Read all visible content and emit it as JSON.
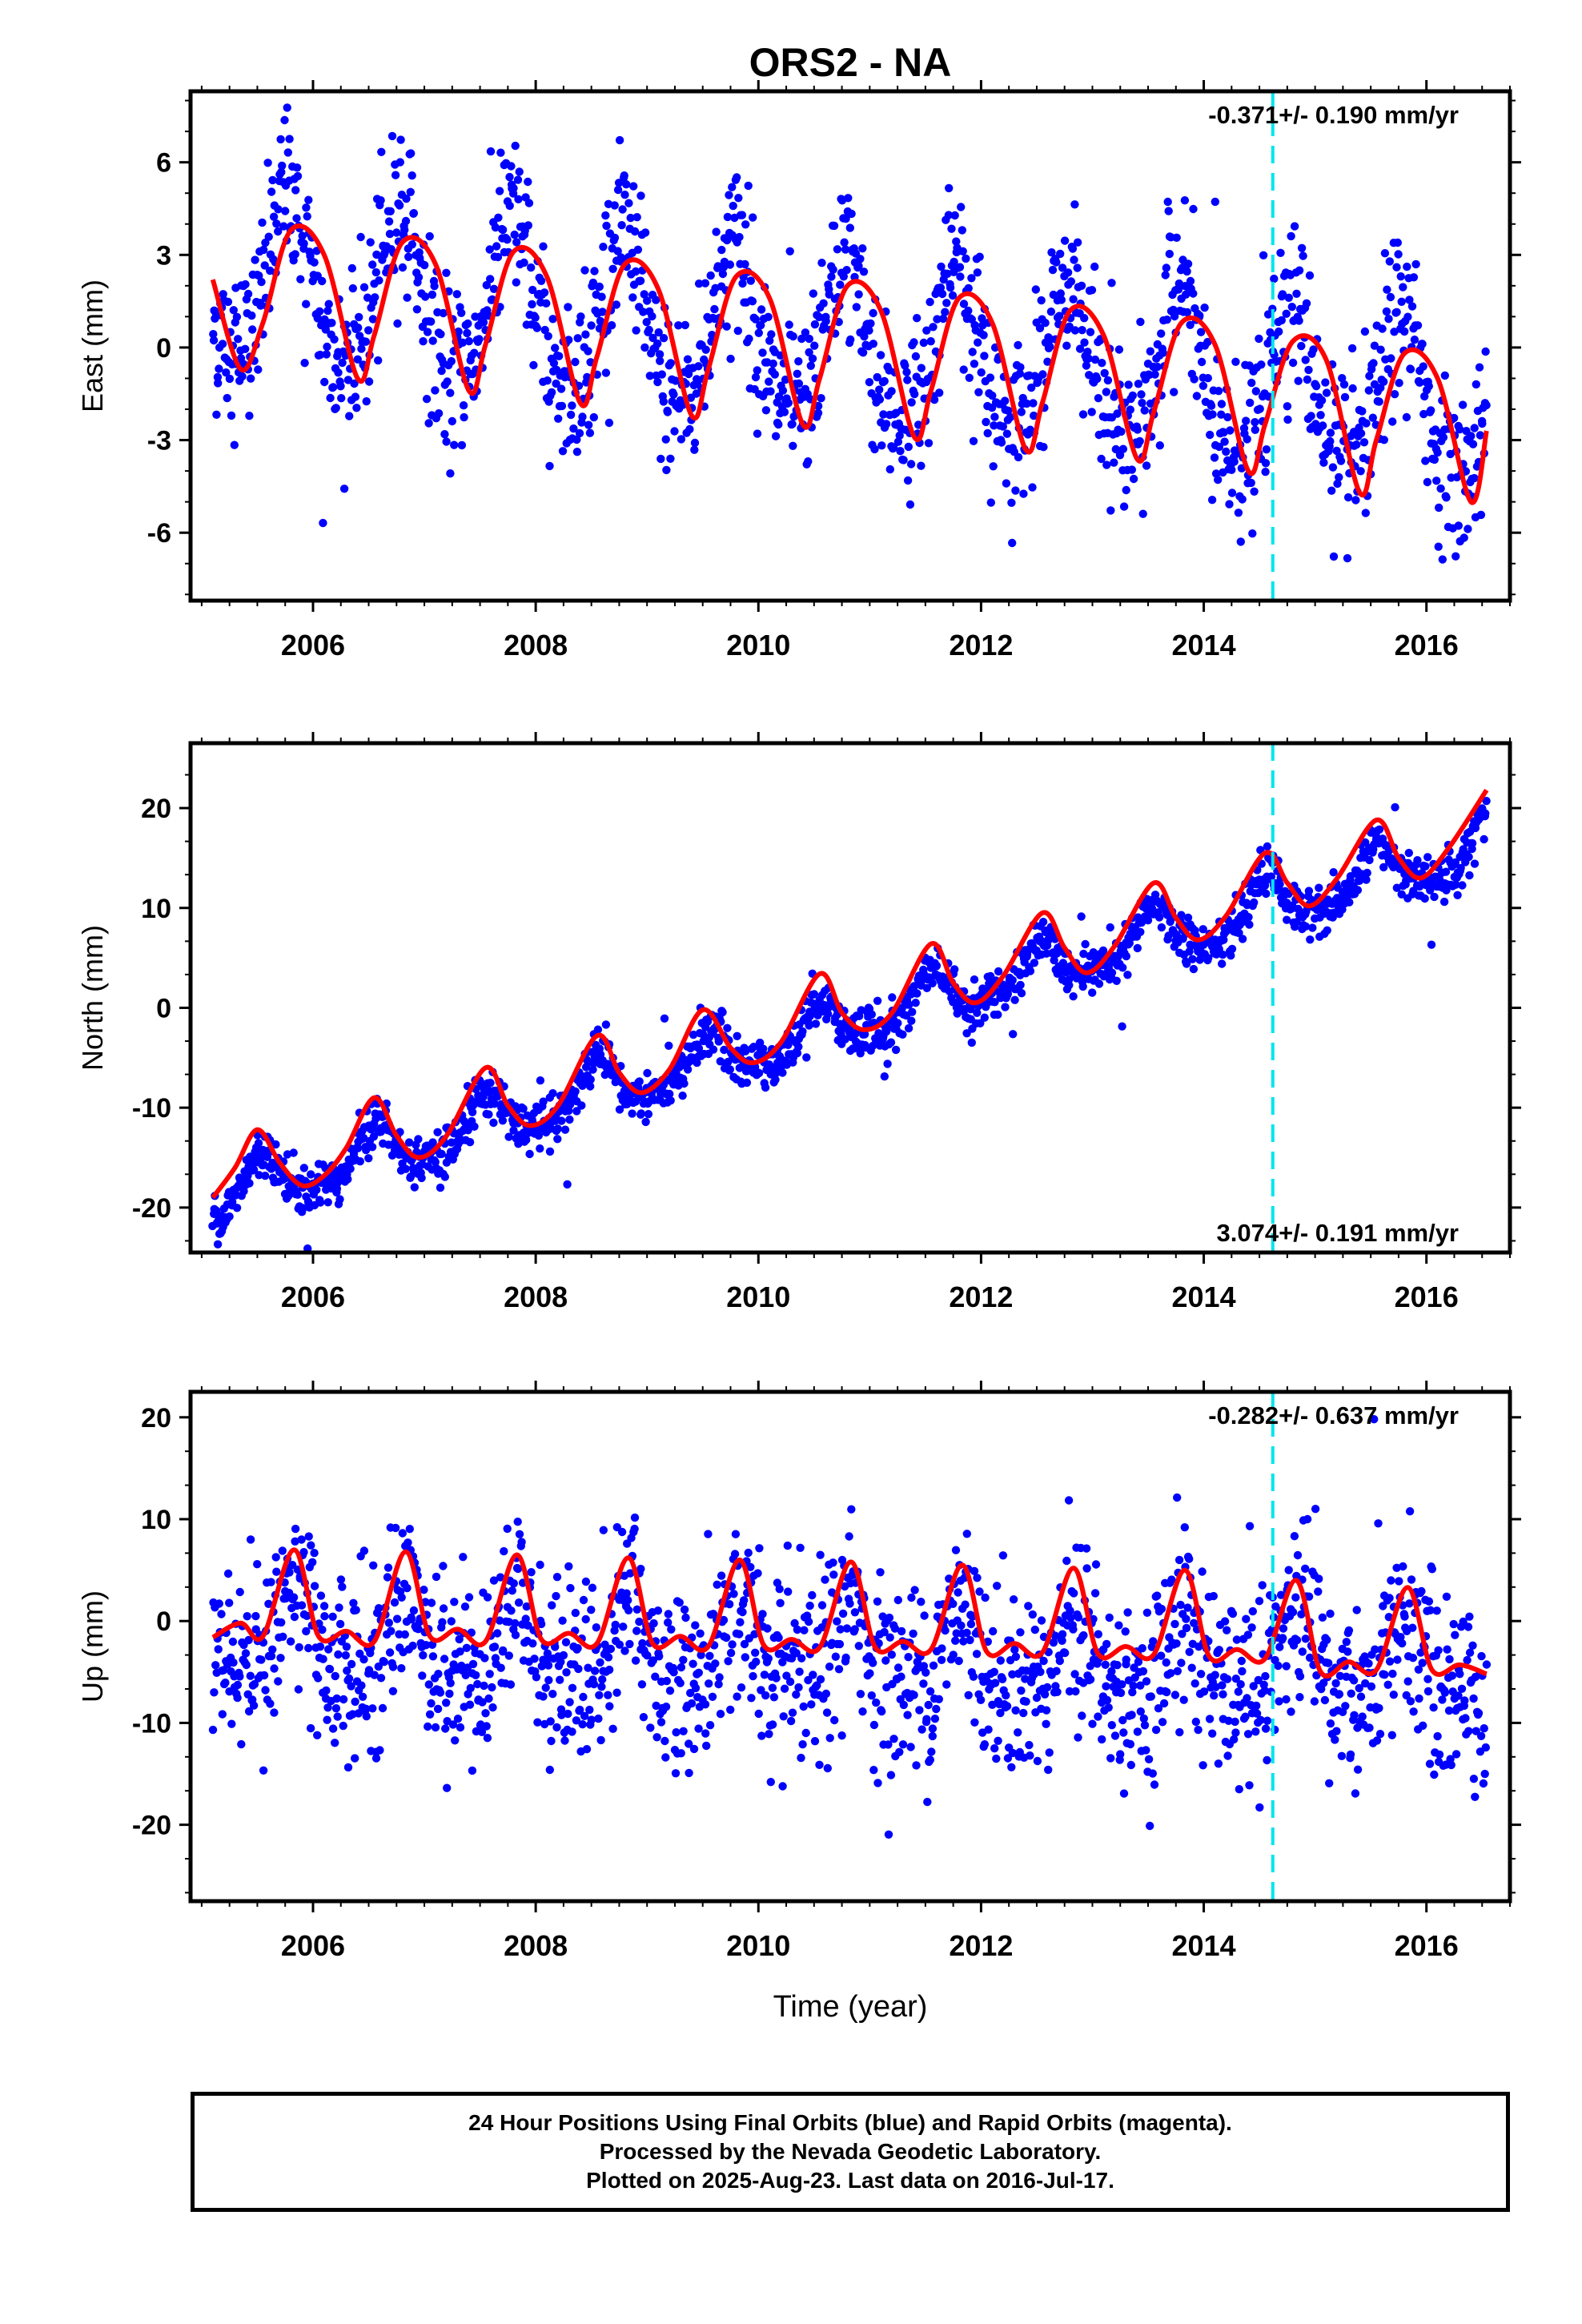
{
  "title": "ORS2 - NA",
  "xlabel": "Time (year)",
  "x_ticks": [
    "2006",
    "2008",
    "2010",
    "2012",
    "2014",
    "2016"
  ],
  "colors": {
    "final_orbits": "#0000ff",
    "fit": "#ff0000",
    "marker": "#00e5ee"
  },
  "caption": [
    "24 Hour Positions Using Final Orbits (blue) and Rapid Orbits (magenta).",
    "Processed by the Nevada Geodetic Laboratory.",
    "Plotted on 2025-Aug-23. Last data on 2016-Jul-17."
  ],
  "chart_data": [
    {
      "type": "scatter",
      "ylabel": "East (mm)",
      "xlim": [
        2004.9,
        2016.75
      ],
      "ylim": [
        -8.2,
        8.3
      ],
      "y_ticks": [
        -6,
        -3,
        0,
        3,
        6
      ],
      "y_tick_labels": [
        "-6",
        "-3",
        "0",
        "3",
        "6"
      ],
      "rate_label": "-0.371+/- 0.190 mm/yr",
      "rate_position": "top-right",
      "marker_year": 2014.62,
      "data_start": 2005.1,
      "data_end": 2016.54,
      "series": [
        {
          "name": "Final Orbits",
          "kind": "daily positions",
          "model": {
            "offset": 2.2,
            "trend": -0.371,
            "annual_amplitude": 2.6,
            "annual_peak": 2005.78,
            "semiannual_amplitude": 0.4,
            "scatter": 1.3
          }
        },
        {
          "name": "fit",
          "kind": "line",
          "x": [
            2005.1,
            2005.35,
            2005.55,
            2005.8,
            2006.1,
            2006.4,
            2006.55,
            2006.8,
            2007.1,
            2007.4,
            2007.55,
            2007.8,
            2008.1,
            2008.4,
            2008.55,
            2008.8,
            2009.1,
            2009.4,
            2009.55,
            2009.8,
            2010.1,
            2010.4,
            2010.55,
            2010.8,
            2011.1,
            2011.4,
            2011.55,
            2011.8,
            2012.1,
            2012.4,
            2012.55,
            2012.8,
            2013.1,
            2013.4,
            2013.55,
            2013.8,
            2014.1,
            2014.4,
            2014.55,
            2014.8,
            2015.1,
            2015.4,
            2015.55,
            2015.8,
            2016.1,
            2016.4,
            2016.54
          ],
          "y": [
            2.2,
            -0.7,
            0.8,
            3.8,
            3.0,
            -1.0,
            0.4,
            3.4,
            2.7,
            -1.4,
            0.1,
            3.1,
            2.3,
            -1.8,
            -0.3,
            2.7,
            1.9,
            -2.2,
            -0.7,
            2.3,
            1.6,
            -2.5,
            -1.0,
            2.0,
            1.2,
            -2.9,
            -1.4,
            1.6,
            0.8,
            -3.3,
            -1.8,
            1.2,
            0.4,
            -3.6,
            -2.1,
            0.8,
            0.1,
            -4.0,
            -2.5,
            0.2,
            -0.4,
            -4.7,
            -3.0,
            -0.2,
            -1.0,
            -5.0,
            -2.7
          ]
        }
      ]
    },
    {
      "type": "scatter",
      "ylabel": "North (mm)",
      "xlim": [
        2004.9,
        2016.75
      ],
      "ylim": [
        -24.5,
        26.5
      ],
      "y_ticks": [
        -20,
        -10,
        0,
        10,
        20
      ],
      "y_tick_labels": [
        "-20",
        "-10",
        "0",
        "10",
        "20"
      ],
      "rate_label": "3.074+/- 0.191 mm/yr",
      "rate_position": "bottom-right",
      "marker_year": 2014.62,
      "data_start": 2005.1,
      "data_end": 2016.54,
      "series": [
        {
          "name": "Final Orbits",
          "kind": "daily positions",
          "model": {
            "offset": -19.0,
            "trend": 3.074,
            "annual_amplitude": 2.4,
            "annual_peak": 2005.55,
            "semiannual_amplitude": 0.8,
            "scatter": 1.2
          }
        },
        {
          "name": "fit",
          "kind": "line",
          "x": [
            2005.1,
            2005.3,
            2005.5,
            2005.7,
            2005.9,
            2006.1,
            2006.3,
            2006.55,
            2006.75,
            2006.95,
            2007.2,
            2007.55,
            2007.75,
            2007.95,
            2008.2,
            2008.55,
            2008.75,
            2008.95,
            2009.2,
            2009.5,
            2009.75,
            2009.95,
            2010.2,
            2010.55,
            2010.75,
            2010.95,
            2011.2,
            2011.55,
            2011.75,
            2011.95,
            2012.2,
            2012.55,
            2012.75,
            2012.95,
            2013.2,
            2013.55,
            2013.75,
            2013.95,
            2014.2,
            2014.55,
            2014.75,
            2014.95,
            2015.2,
            2015.55,
            2015.75,
            2015.95,
            2016.2,
            2016.54
          ],
          "y": [
            -19.0,
            -16.0,
            -12.2,
            -15.5,
            -17.8,
            -16.8,
            -14.0,
            -9.0,
            -12.8,
            -15.0,
            -12.8,
            -6.0,
            -9.8,
            -11.8,
            -9.8,
            -2.8,
            -6.5,
            -8.5,
            -6.2,
            -0.2,
            -4.0,
            -5.5,
            -3.5,
            3.4,
            -0.5,
            -2.2,
            -0.5,
            6.4,
            2.5,
            0.5,
            3.2,
            9.5,
            6.0,
            3.5,
            6.2,
            12.5,
            9.0,
            6.8,
            9.2,
            15.5,
            12.5,
            10.2,
            13.0,
            18.8,
            15.0,
            13.0,
            16.0,
            21.8
          ]
        }
      ]
    },
    {
      "type": "scatter",
      "ylabel": "Up (mm)",
      "xlim": [
        2004.9,
        2016.75
      ],
      "ylim": [
        -27.5,
        22.5
      ],
      "y_ticks": [
        -20,
        -10,
        0,
        10,
        20
      ],
      "y_tick_labels": [
        "-20",
        "-10",
        "0",
        "10",
        "20"
      ],
      "rate_label": "-0.282+/- 0.637 mm/yr",
      "rate_position": "top-right",
      "marker_year": 2014.62,
      "data_start": 2005.1,
      "data_end": 2016.54,
      "series": [
        {
          "name": "Final Orbits",
          "kind": "daily positions",
          "model": {
            "offset": -1.8,
            "trend": -0.282,
            "annual_amplitude": 3.5,
            "annual_peak": 2005.83,
            "semiannual_amplitude": 1.5,
            "scatter": 4.5
          }
        },
        {
          "name": "fit",
          "kind": "line",
          "x": [
            2005.1,
            2005.35,
            2005.55,
            2005.83,
            2006.05,
            2006.3,
            2006.55,
            2006.83,
            2007.05,
            2007.3,
            2007.55,
            2007.83,
            2008.05,
            2008.3,
            2008.55,
            2008.83,
            2009.05,
            2009.3,
            2009.55,
            2009.83,
            2010.05,
            2010.3,
            2010.55,
            2010.83,
            2011.05,
            2011.3,
            2011.55,
            2011.83,
            2012.05,
            2012.3,
            2012.55,
            2012.83,
            2013.05,
            2013.3,
            2013.55,
            2013.83,
            2014.05,
            2014.3,
            2014.55,
            2014.83,
            2015.05,
            2015.3,
            2015.55,
            2015.83,
            2016.05,
            2016.3,
            2016.54
          ],
          "y": [
            -1.6,
            -0.2,
            -1.5,
            7.0,
            -1.5,
            -1.0,
            -2.0,
            6.8,
            -1.5,
            -0.8,
            -2.0,
            6.5,
            -1.8,
            -1.2,
            -2.2,
            6.2,
            -2.2,
            -1.5,
            -2.5,
            6.0,
            -2.4,
            -1.8,
            -2.6,
            5.8,
            -2.6,
            -2.0,
            -2.8,
            5.5,
            -3.0,
            -2.2,
            -3.1,
            5.2,
            -3.2,
            -2.5,
            -3.3,
            5.0,
            -3.5,
            -2.8,
            -3.7,
            4.0,
            -5.0,
            -4.0,
            -4.8,
            3.3,
            -4.8,
            -4.3,
            -5.2
          ]
        }
      ]
    }
  ]
}
